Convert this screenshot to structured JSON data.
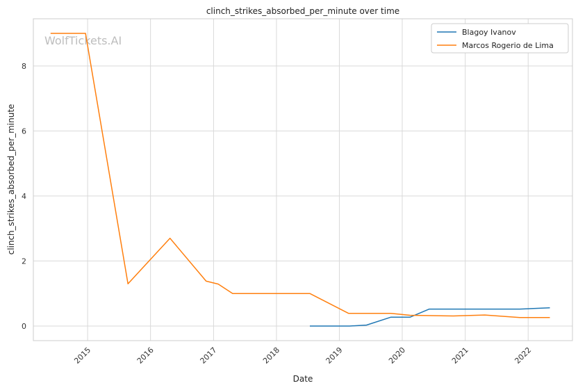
{
  "watermark": "WolfTickets.AI",
  "chart_data": {
    "type": "line",
    "title": "clinch_strikes_absorbed_per_minute over time",
    "xlabel": "Date",
    "ylabel": "clinch_strikes_absorbed_per_minute",
    "x_ticks": [
      "2015",
      "2016",
      "2017",
      "2018",
      "2019",
      "2020",
      "2021",
      "2022"
    ],
    "y_ticks": [
      "0",
      "2",
      "4",
      "6",
      "8"
    ],
    "xlim": [
      "2014-02-20",
      "2022-09-15"
    ],
    "ylim": [
      -0.45,
      9.45
    ],
    "grid": true,
    "legend_position": "top-right",
    "colors": {
      "Blagoy Ivanov": "#1f77b4",
      "Marcos Rogerio de Lima": "#ff7f0e"
    },
    "series": [
      {
        "name": "Blagoy Ivanov",
        "points": [
          [
            "2018-07-14",
            0.0
          ],
          [
            "2019-03-02",
            0.0
          ],
          [
            "2019-06-08",
            0.03
          ],
          [
            "2019-10-26",
            0.27
          ],
          [
            "2020-02-15",
            0.27
          ],
          [
            "2020-06-06",
            0.52
          ],
          [
            "2020-11-07",
            0.52
          ],
          [
            "2021-11-13",
            0.52
          ],
          [
            "2022-05-07",
            0.56
          ]
        ]
      },
      {
        "name": "Marcos Rogerio de Lima",
        "points": [
          [
            "2014-05-31",
            9.0
          ],
          [
            "2014-12-20",
            9.0
          ],
          [
            "2015-08-23",
            1.3
          ],
          [
            "2016-04-23",
            2.7
          ],
          [
            "2016-11-19",
            1.38
          ],
          [
            "2017-01-28",
            1.29
          ],
          [
            "2017-04-22",
            1.0
          ],
          [
            "2018-07-14",
            1.0
          ],
          [
            "2019-02-23",
            0.39
          ],
          [
            "2019-10-26",
            0.39
          ],
          [
            "2020-02-15",
            0.33
          ],
          [
            "2020-10-24",
            0.31
          ],
          [
            "2021-04-24",
            0.34
          ],
          [
            "2021-11-13",
            0.26
          ],
          [
            "2022-05-07",
            0.26
          ]
        ]
      }
    ]
  }
}
